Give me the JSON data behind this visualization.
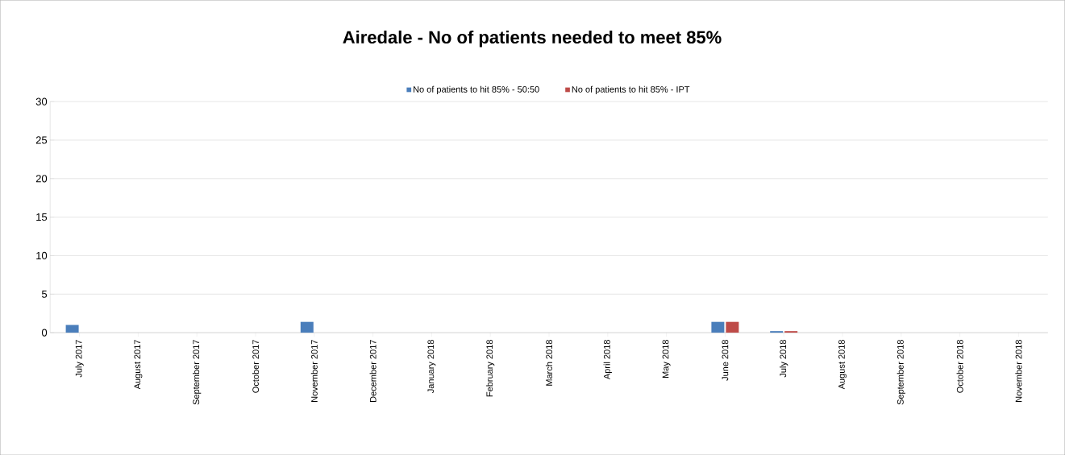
{
  "chart_data": {
    "type": "bar",
    "title": "Airedale - No of patients needed to meet 85%",
    "categories": [
      "July 2017",
      "August 2017",
      "September 2017",
      "October 2017",
      "November 2017",
      "December 2017",
      "January 2018",
      "February 2018",
      "March 2018",
      "April 2018",
      "May 2018",
      "June 2018",
      "July 2018",
      "August 2018",
      "September 2018",
      "October 2018",
      "November 2018"
    ],
    "series": [
      {
        "name": "No of patients to hit 85% - 50:50",
        "color": "#4a7ebb",
        "values": [
          1,
          0,
          0,
          0,
          1.4,
          0,
          0,
          0,
          0,
          0,
          0,
          1.4,
          0.2,
          0,
          0,
          0,
          0
        ]
      },
      {
        "name": "No of patients to hit 85% - IPT",
        "color": "#be4b48",
        "values": [
          0,
          0,
          0,
          0,
          0,
          0,
          0,
          0,
          0,
          0,
          0,
          1.4,
          0.2,
          0,
          0,
          0,
          0
        ]
      }
    ],
    "ylim": [
      0,
      30
    ],
    "yticks": [
      0,
      5,
      10,
      15,
      20,
      25,
      30
    ],
    "grid": "y",
    "legend": "top"
  }
}
